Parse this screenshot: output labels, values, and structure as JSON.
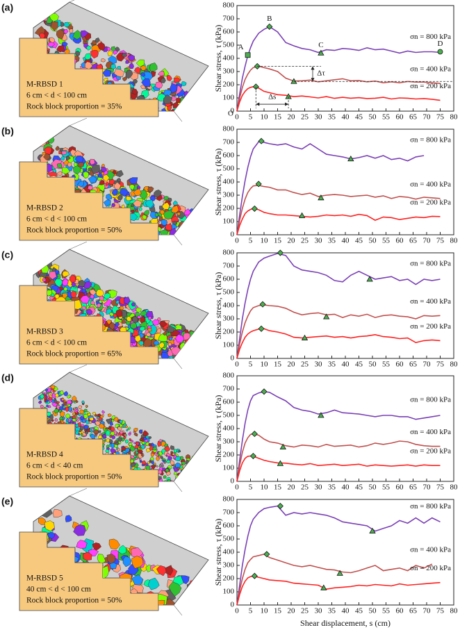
{
  "chart_data": [
    {
      "type": "line",
      "panel_label": "(a)",
      "model_name": "M-RBSD 1",
      "size_range": "6 cm < d < 100 cm",
      "rock_block_proportion": "Rock block proportion = 35%",
      "ylabel": "Shear stress, τ (kPa)",
      "xlim": [
        0,
        80
      ],
      "ylim": [
        0,
        800
      ],
      "xticks": [
        0,
        5,
        10,
        15,
        20,
        25,
        30,
        35,
        40,
        45,
        50,
        55,
        60,
        65,
        70,
        75,
        80
      ],
      "yticks": [
        0,
        100,
        200,
        300,
        400,
        500,
        600,
        700,
        800
      ],
      "x": [
        0,
        1,
        2,
        3,
        4,
        5,
        6,
        8,
        10,
        12,
        15,
        18,
        21,
        24,
        27,
        30,
        33,
        36,
        39,
        42,
        45,
        48,
        51,
        54,
        57,
        60,
        63,
        66,
        69,
        72,
        75,
        78
      ],
      "series": [
        {
          "name": "σn = 800 kPa",
          "color": "#7a3fb5",
          "values": [
            0,
            130,
            250,
            340,
            420,
            480,
            530,
            590,
            620,
            640,
            600,
            520,
            495,
            475,
            465,
            445,
            465,
            460,
            475,
            470,
            460,
            480,
            465,
            470,
            455,
            440,
            455,
            445,
            450,
            450,
            445,
            null
          ],
          "peak": {
            "x": 12,
            "y": 640
          },
          "residual": {
            "x": 31,
            "y": 440
          }
        },
        {
          "name": "σn = 400 kPa",
          "color": "#c0504d",
          "values": [
            0,
            100,
            180,
            240,
            280,
            310,
            330,
            340,
            330,
            320,
            300,
            250,
            228,
            230,
            235,
            222,
            230,
            238,
            245,
            230,
            232,
            222,
            228,
            215,
            222,
            215,
            225,
            220,
            220,
            215,
            210,
            null
          ],
          "peak": {
            "x": 7.5,
            "y": 340
          },
          "residual": {
            "x": 21,
            "y": 225
          }
        },
        {
          "name": "σn = 200 kPa",
          "color": "#ff2020",
          "values": [
            0,
            70,
            120,
            150,
            170,
            180,
            185,
            175,
            150,
            140,
            125,
            120,
            110,
            115,
            108,
            100,
            110,
            97,
            105,
            98,
            102,
            95,
            98,
            105,
            92,
            100,
            98,
            92,
            95,
            90,
            82,
            null
          ],
          "peak": {
            "x": 7,
            "y": 185
          },
          "residual": {
            "x": 19,
            "y": 110
          }
        }
      ],
      "annotations": [
        {
          "text": "A",
          "x": 4,
          "y": 425,
          "marker": "square"
        },
        {
          "text": "B",
          "x": 12,
          "y": 640
        },
        {
          "text": "C",
          "x": 31,
          "y": 440
        },
        {
          "text": "D",
          "x": 75,
          "y": 450,
          "marker": "circle"
        },
        {
          "text": "Δτ",
          "x": 30,
          "y": 285
        },
        {
          "text": "Δs",
          "x": 12,
          "y": 105
        },
        {
          "text": "O",
          "x": 0,
          "y": 0
        }
      ]
    },
    {
      "type": "line",
      "panel_label": "(b)",
      "model_name": "M-RBSD 2",
      "size_range": "6 cm < d < 100 cm",
      "rock_block_proportion": "Rock block proportion = 50%",
      "ylabel": "Shear stress, τ (kPa)",
      "xlim": [
        0,
        80
      ],
      "ylim": [
        0,
        800
      ],
      "xticks": [
        0,
        5,
        10,
        15,
        20,
        25,
        30,
        35,
        40,
        45,
        50,
        55,
        60,
        65,
        70,
        75,
        80
      ],
      "yticks": [
        0,
        100,
        200,
        300,
        400,
        500,
        600,
        700,
        800
      ],
      "x": [
        0,
        1,
        2,
        3,
        4,
        5,
        6,
        8,
        10,
        12,
        15,
        18,
        21,
        24,
        27,
        30,
        33,
        36,
        39,
        42,
        45,
        48,
        51,
        54,
        57,
        60,
        63,
        66,
        69,
        72,
        75,
        78
      ],
      "series": [
        {
          "name": "σn = 800 kPa",
          "color": "#7a3fb5",
          "values": [
            0,
            150,
            290,
            410,
            510,
            590,
            650,
            705,
            700,
            690,
            680,
            690,
            665,
            650,
            690,
            650,
            610,
            600,
            590,
            575,
            585,
            600,
            580,
            600,
            570,
            580,
            560,
            590,
            600,
            null,
            null,
            null
          ],
          "peak": {
            "x": 9,
            "y": 710
          },
          "residual": {
            "x": 42,
            "y": 575
          }
        },
        {
          "name": "σn = 400 kPa",
          "color": "#c0504d",
          "values": [
            0,
            110,
            200,
            270,
            320,
            350,
            370,
            375,
            365,
            360,
            340,
            340,
            320,
            305,
            315,
            290,
            300,
            305,
            300,
            290,
            295,
            300,
            285,
            295,
            275,
            290,
            285,
            270,
            285,
            280,
            275,
            null
          ],
          "peak": {
            "x": 8,
            "y": 385
          },
          "residual": {
            "x": 31,
            "y": 280
          }
        },
        {
          "name": "σn = 200 kPa",
          "color": "#ff2020",
          "values": [
            0,
            70,
            120,
            160,
            180,
            192,
            198,
            190,
            170,
            160,
            150,
            150,
            145,
            140,
            135,
            140,
            150,
            145,
            150,
            140,
            155,
            145,
            110,
            135,
            130,
            115,
            125,
            135,
            130,
            140,
            138,
            null
          ],
          "peak": {
            "x": 6.5,
            "y": 198
          },
          "residual": {
            "x": 24,
            "y": 145
          }
        }
      ]
    },
    {
      "type": "line",
      "panel_label": "(c)",
      "model_name": "M-RBSD 3",
      "size_range": "6 cm < d < 100 cm",
      "rock_block_proportion": "Rock block proportion = 65%",
      "ylabel": "Shear stress, τ (kPa)",
      "xlim": [
        0,
        80
      ],
      "ylim": [
        0,
        800
      ],
      "xticks": [
        0,
        5,
        10,
        15,
        20,
        25,
        30,
        35,
        40,
        45,
        50,
        55,
        60,
        65,
        70,
        75,
        80
      ],
      "yticks": [
        0,
        100,
        200,
        300,
        400,
        500,
        600,
        700,
        800
      ],
      "x": [
        0,
        1,
        2,
        3,
        4,
        5,
        6,
        8,
        10,
        12,
        15,
        18,
        21,
        24,
        27,
        30,
        33,
        36,
        39,
        42,
        45,
        48,
        51,
        54,
        57,
        60,
        63,
        66,
        69,
        72,
        75,
        78
      ],
      "series": [
        {
          "name": "σn = 800 kPa",
          "color": "#7a3fb5",
          "values": [
            0,
            150,
            300,
            420,
            520,
            600,
            660,
            730,
            760,
            775,
            795,
            780,
            700,
            670,
            660,
            650,
            630,
            590,
            580,
            630,
            660,
            630,
            600,
            610,
            620,
            590,
            600,
            560,
            600,
            590,
            600,
            null
          ],
          "peak": {
            "x": 16,
            "y": 800
          },
          "residual": {
            "x": 49,
            "y": 600
          }
        },
        {
          "name": "σn = 400 kPa",
          "color": "#c0504d",
          "values": [
            0,
            110,
            200,
            270,
            320,
            360,
            385,
            400,
            405,
            400,
            395,
            380,
            350,
            330,
            340,
            345,
            330,
            335,
            310,
            330,
            320,
            335,
            310,
            325,
            330,
            320,
            315,
            300,
            325,
            320,
            325,
            null
          ],
          "peak": {
            "x": 9.5,
            "y": 410
          },
          "residual": {
            "x": 33,
            "y": 315
          }
        },
        {
          "name": "σn = 200 kPa",
          "color": "#ff2020",
          "values": [
            0,
            70,
            120,
            160,
            185,
            200,
            210,
            222,
            225,
            210,
            200,
            185,
            160,
            155,
            160,
            165,
            170,
            160,
            165,
            155,
            165,
            170,
            180,
            165,
            160,
            150,
            155,
            120,
            135,
            140,
            135,
            null
          ],
          "peak": {
            "x": 9,
            "y": 225
          },
          "residual": {
            "x": 25,
            "y": 155
          }
        }
      ]
    },
    {
      "type": "line",
      "panel_label": "(d)",
      "model_name": "M-RBSD 4",
      "size_range": "6 cm < d < 40 cm",
      "rock_block_proportion": "Rock block proportion = 50%",
      "ylabel": "Shear stress, τ (kPa)",
      "xlim": [
        0,
        80
      ],
      "ylim": [
        0,
        800
      ],
      "xticks": [
        0,
        5,
        10,
        15,
        20,
        25,
        30,
        35,
        40,
        45,
        50,
        55,
        60,
        65,
        70,
        75,
        80
      ],
      "yticks": [
        0,
        100,
        200,
        300,
        400,
        500,
        600,
        700,
        800
      ],
      "x": [
        0,
        1,
        2,
        3,
        4,
        5,
        6,
        8,
        10,
        12,
        15,
        18,
        21,
        24,
        27,
        30,
        33,
        36,
        39,
        42,
        45,
        48,
        51,
        54,
        57,
        60,
        63,
        66,
        69,
        72,
        75,
        78
      ],
      "series": [
        {
          "name": "σn = 800 kPa",
          "color": "#7a3fb5",
          "values": [
            0,
            160,
            310,
            440,
            540,
            610,
            650,
            670,
            680,
            675,
            640,
            610,
            560,
            540,
            530,
            510,
            520,
            540,
            520,
            515,
            510,
            500,
            490,
            500,
            500,
            490,
            490,
            470,
            480,
            490,
            500,
            null
          ],
          "peak": {
            "x": 10,
            "y": 680
          },
          "residual": {
            "x": 31,
            "y": 500
          }
        },
        {
          "name": "σn = 400 kPa",
          "color": "#c0504d",
          "values": [
            0,
            120,
            220,
            290,
            330,
            355,
            360,
            350,
            320,
            300,
            290,
            270,
            260,
            275,
            270,
            260,
            280,
            265,
            270,
            275,
            260,
            270,
            290,
            280,
            290,
            305,
            300,
            280,
            270,
            265,
            265,
            null
          ],
          "peak": {
            "x": 6.5,
            "y": 360
          },
          "residual": {
            "x": 17,
            "y": 260
          }
        },
        {
          "name": "σn = 200 kPa",
          "color": "#ff2020",
          "values": [
            0,
            80,
            140,
            175,
            190,
            192,
            190,
            175,
            160,
            150,
            140,
            138,
            130,
            125,
            135,
            120,
            125,
            130,
            120,
            125,
            130,
            115,
            125,
            120,
            115,
            120,
            125,
            115,
            125,
            120,
            120,
            null
          ],
          "peak": {
            "x": 6,
            "y": 192
          },
          "residual": {
            "x": 16,
            "y": 135
          }
        }
      ]
    },
    {
      "type": "line",
      "panel_label": "(e)",
      "model_name": "M-RBSD 5",
      "size_range": "40 cm < d < 100 cm",
      "rock_block_proportion": "Rock block proportion = 50%",
      "ylabel": "Shear stress, τ (kPa)",
      "xlabel": "Shear displacement, s (cm)",
      "xlim": [
        0,
        80
      ],
      "ylim": [
        0,
        800
      ],
      "xticks": [
        0,
        5,
        10,
        15,
        20,
        25,
        30,
        35,
        40,
        45,
        50,
        55,
        60,
        65,
        70,
        75,
        80
      ],
      "yticks": [
        0,
        100,
        200,
        300,
        400,
        500,
        600,
        700,
        800
      ],
      "x": [
        0,
        1,
        2,
        3,
        4,
        5,
        6,
        8,
        10,
        12,
        15,
        18,
        21,
        24,
        27,
        30,
        33,
        36,
        39,
        42,
        45,
        48,
        51,
        54,
        57,
        60,
        63,
        66,
        69,
        72,
        75,
        78
      ],
      "series": [
        {
          "name": "σn = 800 kPa",
          "color": "#7a3fb5",
          "values": [
            0,
            150,
            300,
            420,
            520,
            600,
            650,
            700,
            730,
            740,
            750,
            680,
            700,
            690,
            700,
            690,
            680,
            660,
            630,
            620,
            610,
            600,
            560,
            580,
            600,
            640,
            620,
            660,
            620,
            660,
            630,
            null
          ],
          "peak": {
            "x": 16,
            "y": 750
          },
          "residual": {
            "x": 50,
            "y": 560
          }
        },
        {
          "name": "σn = 400 kPa",
          "color": "#c0504d",
          "values": [
            0,
            110,
            200,
            270,
            320,
            345,
            365,
            375,
            385,
            360,
            340,
            320,
            300,
            290,
            300,
            285,
            270,
            265,
            250,
            245,
            260,
            280,
            300,
            260,
            270,
            280,
            260,
            300,
            280,
            310,
            null,
            null
          ],
          "peak": {
            "x": 11,
            "y": 385
          },
          "residual": {
            "x": 38,
            "y": 240
          }
        },
        {
          "name": "σn = 200 kPa",
          "color": "#ff2020",
          "values": [
            0,
            80,
            140,
            180,
            205,
            215,
            220,
            210,
            200,
            190,
            185,
            180,
            165,
            160,
            155,
            150,
            120,
            130,
            135,
            140,
            150,
            145,
            155,
            150,
            145,
            160,
            150,
            155,
            160,
            165,
            170,
            null
          ],
          "peak": {
            "x": 6.5,
            "y": 220
          },
          "residual": {
            "x": 32,
            "y": 130
          }
        }
      ]
    }
  ]
}
